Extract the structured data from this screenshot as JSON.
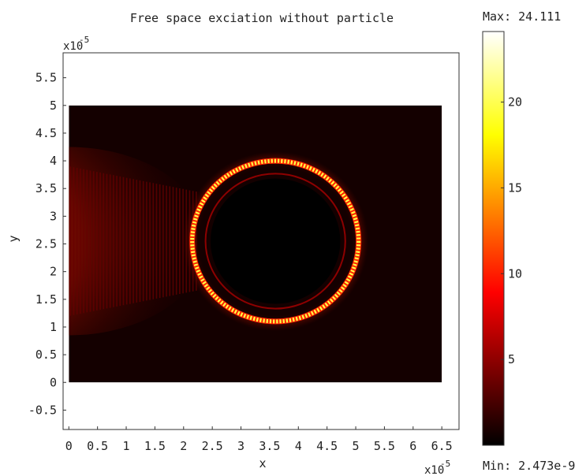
{
  "chart_data": {
    "type": "heatmap",
    "title": "Free space exciation without particle",
    "xlabel": "x",
    "ylabel": "y",
    "x_exponent_label": "x10",
    "y_exponent_label": "x10",
    "exponent": "-5",
    "xlim": [
      -0.1,
      6.8
    ],
    "ylim": [
      -0.85,
      5.95
    ],
    "x_ticks": [
      0,
      0.5,
      1,
      1.5,
      2,
      2.5,
      3,
      3.5,
      4,
      4.5,
      5,
      5.5,
      6,
      6.5
    ],
    "x_tick_labels": [
      "0",
      "0.5",
      "1",
      "1.5",
      "2",
      "2.5",
      "3",
      "3.5",
      "4",
      "4.5",
      "5",
      "5.5",
      "6",
      "6.5"
    ],
    "y_ticks": [
      -0.5,
      0,
      0.5,
      1,
      1.5,
      2,
      2.5,
      3,
      3.5,
      4,
      4.5,
      5,
      5.5
    ],
    "y_tick_labels": [
      "-0.5",
      "0",
      "0.5",
      "1",
      "1.5",
      "2",
      "2.5",
      "3",
      "3.5",
      "4",
      "4.5",
      "5",
      "5.5"
    ],
    "domain": {
      "x": [
        0,
        6.5
      ],
      "y": [
        0,
        5
      ]
    },
    "ring": {
      "center": [
        3.6,
        2.55
      ],
      "radius": 1.45,
      "peak_value": 24.111
    },
    "incident_beam": {
      "x_range": [
        0,
        2.3
      ],
      "y_center": 2.55,
      "level": 8
    },
    "colorbar": {
      "colormap": "hot",
      "min": 2.473e-09,
      "max": 24.111,
      "ticks": [
        5,
        10,
        15,
        20
      ],
      "tick_labels": [
        "5",
        "10",
        "15",
        "20"
      ],
      "max_label": "Max: 24.111",
      "min_label": "Min: 2.473e-9"
    }
  }
}
